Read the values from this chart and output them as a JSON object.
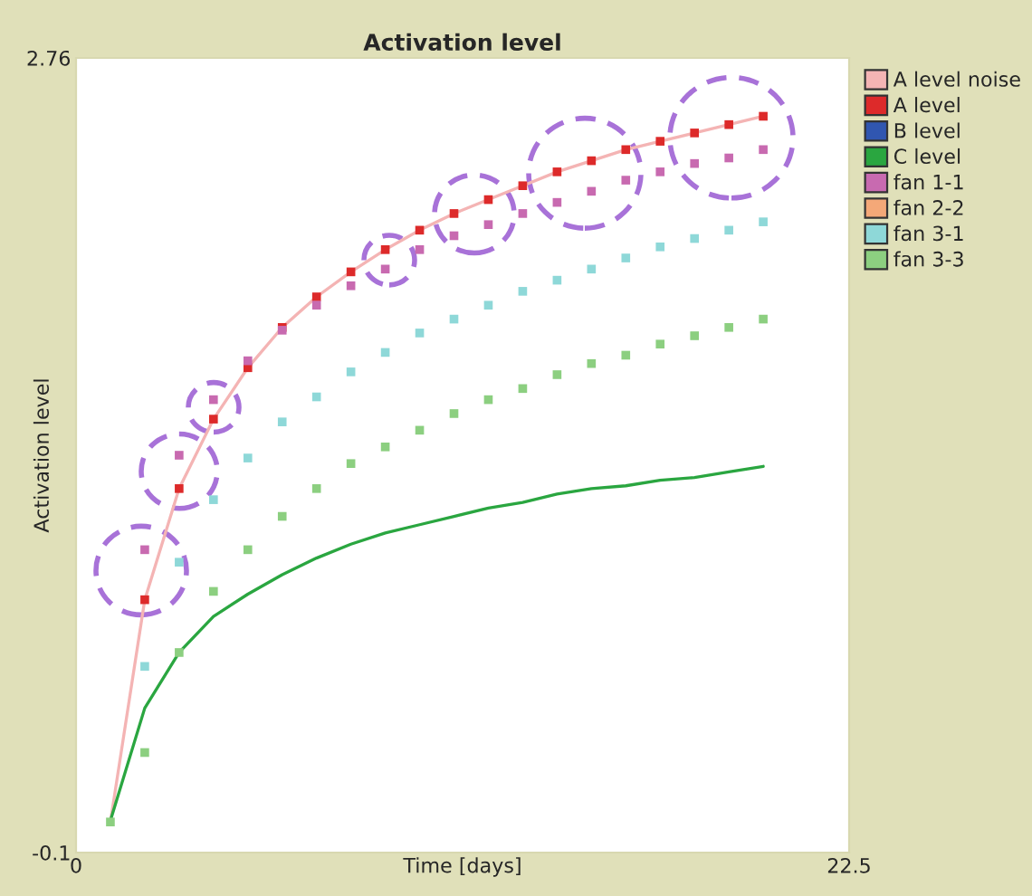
{
  "chart_data": {
    "type": "line",
    "title": "Activation level",
    "xlabel": "Time [days]",
    "ylabel": "Activation level",
    "x": [
      1,
      2,
      3,
      4,
      5,
      6,
      7,
      8,
      9,
      10,
      11,
      12,
      13,
      14,
      15,
      16,
      17,
      18,
      19,
      20
    ],
    "xlim": [
      0,
      22.5
    ],
    "xticks": [
      0,
      22.5
    ],
    "ylim": [
      -0.1,
      2.76
    ],
    "yticks": [
      -0.1,
      2.76
    ],
    "grid": false,
    "legend": "right",
    "series": [
      {
        "name": "A level noise",
        "color": "#f4b4b4",
        "line_style": "solid",
        "marker": "none",
        "values": [
          0.01,
          0.81,
          1.21,
          1.46,
          1.645,
          1.79,
          1.9,
          1.99,
          2.07,
          2.14,
          2.2,
          2.25,
          2.3,
          2.35,
          2.39,
          2.43,
          2.46,
          2.49,
          2.52,
          2.55
        ]
      },
      {
        "name": "A level",
        "type": "scatter",
        "color": "#dd2a2a",
        "marker": "square",
        "values": [
          null,
          0.81,
          1.21,
          1.46,
          1.645,
          1.79,
          1.9,
          1.99,
          2.07,
          2.14,
          2.2,
          2.25,
          2.3,
          2.35,
          2.39,
          2.43,
          2.46,
          2.49,
          2.52,
          2.55
        ]
      },
      {
        "name": "B level",
        "type": "scatter",
        "color": "#3056b0",
        "marker": "square",
        "values": [
          null,
          null,
          null,
          null,
          null,
          null,
          null,
          null,
          null,
          null,
          null,
          null,
          null,
          null,
          null,
          null,
          null,
          null,
          null,
          null
        ]
      },
      {
        "name": "C level",
        "color": "#2aa640",
        "line_style": "solid",
        "marker": "none",
        "values": [
          0.015,
          0.42,
          0.62,
          0.75,
          0.83,
          0.9,
          0.96,
          1.01,
          1.05,
          1.08,
          1.11,
          1.14,
          1.16,
          1.19,
          1.21,
          1.22,
          1.24,
          1.25,
          1.27,
          1.29
        ]
      },
      {
        "name": "fan 1-1",
        "type": "scatter",
        "color": "#c86ab0",
        "marker": "square",
        "values": [
          null,
          0.99,
          1.33,
          1.53,
          1.67,
          1.78,
          1.87,
          1.94,
          2.0,
          2.07,
          2.12,
          2.16,
          2.2,
          2.24,
          2.28,
          2.32,
          2.35,
          2.38,
          2.4,
          2.43
        ]
      },
      {
        "name": "fan 2-2",
        "type": "scatter",
        "color": "#f4a878",
        "marker": "square",
        "values": [
          null,
          null,
          null,
          null,
          null,
          null,
          null,
          null,
          null,
          null,
          null,
          null,
          null,
          null,
          null,
          null,
          null,
          null,
          null,
          null
        ]
      },
      {
        "name": "fan 3-1",
        "type": "scatter",
        "color": "#8ed8d8",
        "marker": "square",
        "values": [
          null,
          0.57,
          0.945,
          1.17,
          1.32,
          1.45,
          1.54,
          1.63,
          1.7,
          1.77,
          1.82,
          1.87,
          1.92,
          1.96,
          2.0,
          2.04,
          2.08,
          2.11,
          2.14,
          2.17
        ]
      },
      {
        "name": "fan 3-3",
        "type": "scatter",
        "color": "#8ccf80",
        "marker": "square",
        "values": [
          0.01,
          0.26,
          0.62,
          0.84,
          0.99,
          1.11,
          1.21,
          1.3,
          1.36,
          1.42,
          1.48,
          1.53,
          1.57,
          1.62,
          1.66,
          1.69,
          1.73,
          1.76,
          1.79,
          1.82
        ]
      }
    ]
  }
}
